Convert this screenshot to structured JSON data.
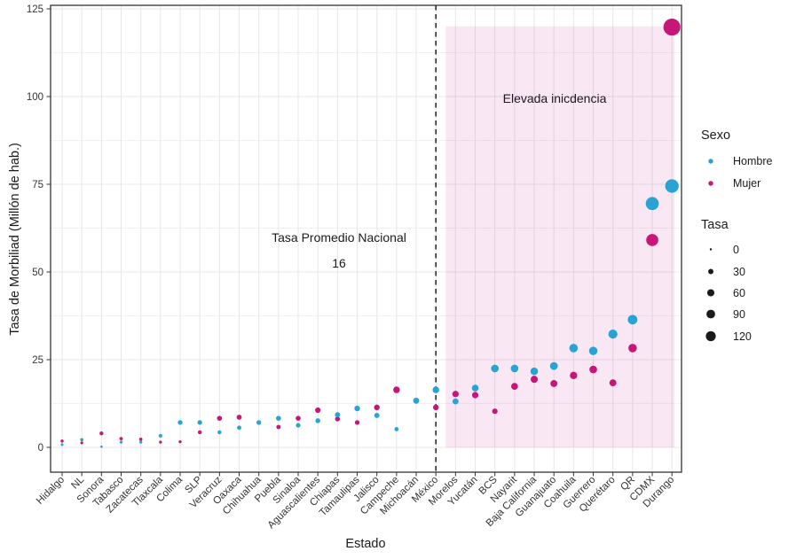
{
  "chart_data": {
    "type": "scatter",
    "title": "",
    "xlabel": "Estado",
    "ylabel": "Tasa de Morbiliad  (Millón de hab.)",
    "ylim": [
      0,
      125
    ],
    "y_ticks": [
      0,
      25,
      50,
      75,
      100,
      125
    ],
    "y_minor_ticks": [
      12.5,
      37.5,
      62.5,
      87.5,
      112.5
    ],
    "grid": true,
    "legend_position": "right",
    "categories": [
      "Hidalgo",
      "NL",
      "Sonora",
      "Tabasco",
      "Zacatecas",
      "Tlaxcala",
      "Colima",
      "SLP",
      "Veracruz",
      "Oaxaca",
      "Chihuahua",
      "Puebla",
      "Sinaloa",
      "Aguascalientes",
      "Chiapas",
      "Tamaulipas",
      "Jalisco",
      "Campeche",
      "Michoacán",
      "México",
      "Morelos",
      "Yucatán",
      "BCS",
      "Nayarit",
      "Baja California",
      "Guanajuato",
      "Coahuila",
      "Guerrero",
      "Querétaro",
      "QR",
      "CDMX",
      "Durango"
    ],
    "series": [
      {
        "name": "Mujer",
        "color": "#C81578",
        "values": [
          1.8,
          1.3,
          4.0,
          2.5,
          2.3,
          1.5,
          1.6,
          4.3,
          8.3,
          8.6,
          null,
          5.8,
          8.3,
          10.6,
          8.1,
          7.1,
          11.4,
          16.4,
          null,
          11.4,
          15.2,
          14.9,
          10.3,
          17.4,
          19.4,
          18.2,
          20.5,
          22.2,
          18.4,
          28.3,
          59.1,
          119.8
        ]
      },
      {
        "name": "Hombre",
        "color": "#29A3D4",
        "values": [
          0.8,
          2.2,
          0.2,
          1.5,
          1.5,
          3.3,
          7.1,
          7.1,
          4.3,
          5.6,
          7.1,
          8.3,
          6.3,
          7.6,
          9.3,
          11.1,
          9.1,
          5.2,
          13.3,
          16.4,
          13.1,
          16.9,
          22.5,
          22.5,
          21.7,
          23.2,
          28.3,
          27.5,
          32.3,
          36.4,
          69.5,
          74.5
        ]
      }
    ],
    "size_encoding": {
      "label": "Tasa",
      "breaks": [
        0,
        30,
        60,
        90,
        120
      ]
    },
    "vline": {
      "at_category": "México",
      "style": "dashed",
      "label": "Tasa Promedio Nacional",
      "value_label": "16"
    },
    "highlight_region": {
      "from_category": "Morelos",
      "to_category": "Durango",
      "y_from": 0,
      "y_to": 120,
      "label": "Elevada inicdencia",
      "color": "#C71585",
      "opacity": 0.1
    }
  },
  "legend": {
    "sexo_title": "Sexo",
    "hombre_label": "Hombre",
    "mujer_label": "Mujer",
    "tasa_title": "Tasa",
    "sizes": [
      "0",
      "30",
      "60",
      "90",
      "120"
    ]
  },
  "colors": {
    "hombre": "#29A3D4",
    "mujer": "#C81578",
    "region_fill": "#C71585",
    "grid_major": "#E7E7E7",
    "grid_minor": "#F1F1F1",
    "panel_border": "#333333",
    "tick_text": "#333333",
    "title_text": "#1A1A1A",
    "legend_dot": "#1A1A1A",
    "vline": "#111111"
  }
}
